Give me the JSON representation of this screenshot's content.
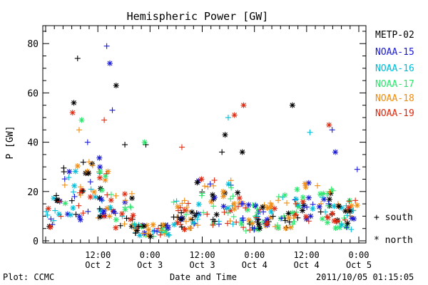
{
  "chart_data": {
    "type": "scatter",
    "title": "Hemispheric Power [GW]",
    "ylabel": "P [GW]",
    "xlabel": "Date and Time",
    "ylim": [
      0,
      87
    ],
    "yticks": [
      0,
      20,
      40,
      60,
      80
    ],
    "xlim": [
      0,
      100
    ],
    "xticks": [
      {
        "x": 16.7,
        "time": "12:00",
        "date": "Oct 2"
      },
      {
        "x": 33.3,
        "time": "0:00",
        "date": "Oct 3"
      },
      {
        "x": 50.0,
        "time": "12:00",
        "date": "Oct 3"
      },
      {
        "x": 66.7,
        "time": "0:00",
        "date": "Oct 4"
      },
      {
        "x": 83.3,
        "time": "12:00",
        "date": "Oct 4"
      },
      {
        "x": 100.0,
        "time": "0:00",
        "date": "Oct 5"
      }
    ],
    "markers": {
      "south": "+",
      "north": "*"
    },
    "series": [
      {
        "name": "METP-02",
        "color": "#000000"
      },
      {
        "name": "NOAA-15",
        "color": "#1a1ad6"
      },
      {
        "name": "NOAA-16",
        "color": "#00bcd8"
      },
      {
        "name": "NOAA-17",
        "color": "#2ee66e"
      },
      {
        "name": "NOAA-18",
        "color": "#f08c12"
      },
      {
        "name": "NOAA-19",
        "color": "#e02a10"
      }
    ]
  },
  "legend": {
    "south_label": "south",
    "north_label": "north"
  },
  "footer": {
    "left": "Plot: CCMC",
    "timestamp": "2011/10/05 01:15:05"
  }
}
